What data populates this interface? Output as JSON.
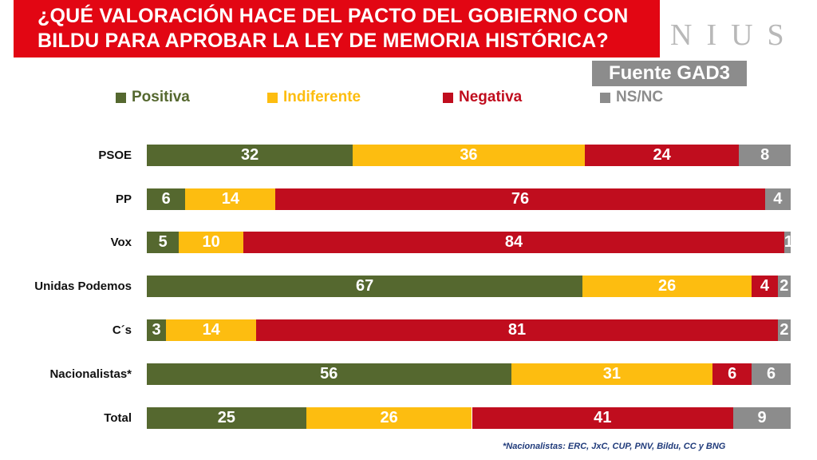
{
  "title": {
    "line1": "¿QUÉ VALORACIÓN HACE DEL PACTO DEL GOBIERNO CON",
    "line2": "BILDU PARA APROBAR LA LEY DE MEMORIA HISTÓRICA?"
  },
  "watermark": "NIUS",
  "source": "Fuente GAD3",
  "footnote": "*Nacionalistas: ERC, JxC, CUP, PNV, Bildu, CC y BNG",
  "colors": {
    "positiva": "#55682f",
    "indiferente": "#fdbd10",
    "negativa": "#c00d1e",
    "nsnc": "#8c8c8c"
  },
  "chart_data": {
    "type": "bar",
    "orientation": "horizontal",
    "stacked": true,
    "title": "¿QUÉ VALORACIÓN HACE DEL PACTO DEL GOBIERNO CON BILDU PARA APROBAR LA LEY DE MEMORIA HISTÓRICA?",
    "xlabel": "",
    "ylabel": "",
    "xlim": [
      0,
      100
    ],
    "legend_position": "top",
    "categories": [
      "PSOE",
      "PP",
      "Vox",
      "Unidas Podemos",
      "C´s",
      "Nacionalistas*",
      "Total"
    ],
    "series": [
      {
        "name": "Positiva",
        "color_key": "positiva",
        "values": [
          32,
          6,
          5,
          67,
          3,
          56,
          25
        ]
      },
      {
        "name": "Indiferente",
        "color_key": "indiferente",
        "values": [
          36,
          14,
          10,
          26,
          14,
          31,
          26
        ]
      },
      {
        "name": "Negativa",
        "color_key": "negativa",
        "values": [
          24,
          76,
          84,
          4,
          81,
          6,
          41
        ]
      },
      {
        "name": "NS/NC",
        "color_key": "nsnc",
        "values": [
          8,
          4,
          1,
          2,
          2,
          6,
          9
        ]
      }
    ]
  }
}
